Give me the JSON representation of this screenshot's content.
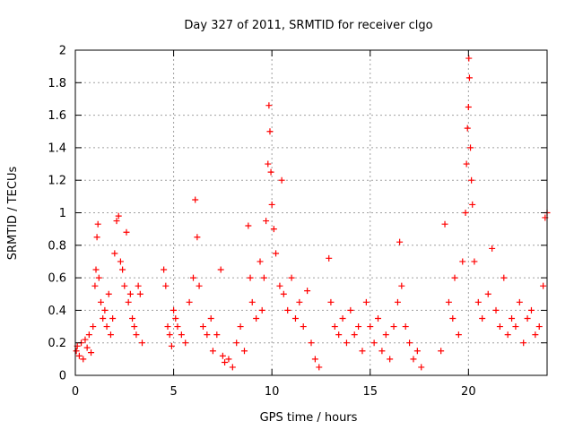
{
  "chart_data": {
    "type": "scatter",
    "title": "Day 327 of 2011, SRMTID for receiver clgo",
    "xlabel": "GPS time / hours",
    "ylabel": "SRMTID / TECUs",
    "xlim": [
      0,
      24
    ],
    "ylim": [
      0,
      2
    ],
    "xticks": [
      0,
      5,
      10,
      15,
      20
    ],
    "xtick_labels": [
      "0",
      "5",
      "10",
      "15",
      "20"
    ],
    "yticks": [
      0,
      0.2,
      0.4,
      0.6,
      0.8,
      1,
      1.2,
      1.4,
      1.6,
      1.8,
      2
    ],
    "ytick_labels": [
      "0",
      "0.2",
      "0.4",
      "0.6",
      "0.8",
      "1",
      "1.2",
      "1.4",
      "1.6",
      "1.8",
      "2"
    ],
    "grid": true,
    "marker": "plus",
    "series": [
      {
        "name": "SRMTID",
        "color": "#ff0000",
        "points": [
          [
            0.05,
            0.15
          ],
          [
            0.1,
            0.18
          ],
          [
            0.2,
            0.12
          ],
          [
            0.3,
            0.2
          ],
          [
            0.4,
            0.1
          ],
          [
            0.5,
            0.22
          ],
          [
            0.6,
            0.17
          ],
          [
            0.7,
            0.25
          ],
          [
            0.8,
            0.14
          ],
          [
            0.9,
            0.3
          ],
          [
            1.0,
            0.55
          ],
          [
            1.05,
            0.65
          ],
          [
            1.1,
            0.85
          ],
          [
            1.15,
            0.93
          ],
          [
            1.2,
            0.6
          ],
          [
            1.3,
            0.45
          ],
          [
            1.4,
            0.35
          ],
          [
            1.5,
            0.4
          ],
          [
            1.6,
            0.3
          ],
          [
            1.7,
            0.5
          ],
          [
            1.8,
            0.25
          ],
          [
            1.9,
            0.35
          ],
          [
            2.0,
            0.75
          ],
          [
            2.1,
            0.95
          ],
          [
            2.2,
            0.98
          ],
          [
            2.3,
            0.7
          ],
          [
            2.4,
            0.65
          ],
          [
            2.5,
            0.55
          ],
          [
            2.6,
            0.88
          ],
          [
            2.7,
            0.45
          ],
          [
            2.8,
            0.5
          ],
          [
            2.9,
            0.35
          ],
          [
            3.0,
            0.3
          ],
          [
            3.1,
            0.25
          ],
          [
            3.2,
            0.55
          ],
          [
            3.3,
            0.5
          ],
          [
            3.4,
            0.2
          ],
          [
            4.5,
            0.65
          ],
          [
            4.6,
            0.55
          ],
          [
            4.7,
            0.3
          ],
          [
            4.8,
            0.25
          ],
          [
            4.9,
            0.18
          ],
          [
            5.0,
            0.4
          ],
          [
            5.1,
            0.35
          ],
          [
            5.2,
            0.3
          ],
          [
            5.4,
            0.25
          ],
          [
            5.6,
            0.2
          ],
          [
            5.8,
            0.45
          ],
          [
            6.0,
            0.6
          ],
          [
            6.1,
            1.08
          ],
          [
            6.2,
            0.85
          ],
          [
            6.3,
            0.55
          ],
          [
            6.5,
            0.3
          ],
          [
            6.7,
            0.25
          ],
          [
            6.9,
            0.35
          ],
          [
            7.0,
            0.15
          ],
          [
            7.2,
            0.25
          ],
          [
            7.4,
            0.65
          ],
          [
            7.5,
            0.12
          ],
          [
            7.6,
            0.08
          ],
          [
            7.8,
            0.1
          ],
          [
            8.0,
            0.05
          ],
          [
            8.2,
            0.2
          ],
          [
            8.4,
            0.3
          ],
          [
            8.6,
            0.15
          ],
          [
            8.8,
            0.92
          ],
          [
            8.9,
            0.6
          ],
          [
            9.0,
            0.45
          ],
          [
            9.2,
            0.35
          ],
          [
            9.4,
            0.7
          ],
          [
            9.5,
            0.4
          ],
          [
            9.6,
            0.6
          ],
          [
            9.7,
            0.95
          ],
          [
            9.8,
            1.3
          ],
          [
            9.85,
            1.66
          ],
          [
            9.9,
            1.5
          ],
          [
            9.95,
            1.25
          ],
          [
            10.0,
            1.05
          ],
          [
            10.1,
            0.9
          ],
          [
            10.2,
            0.75
          ],
          [
            10.4,
            0.55
          ],
          [
            10.5,
            1.2
          ],
          [
            10.6,
            0.5
          ],
          [
            10.8,
            0.4
          ],
          [
            11.0,
            0.6
          ],
          [
            11.2,
            0.35
          ],
          [
            11.4,
            0.45
          ],
          [
            11.6,
            0.3
          ],
          [
            11.8,
            0.52
          ],
          [
            12.0,
            0.2
          ],
          [
            12.2,
            0.1
          ],
          [
            12.4,
            0.05
          ],
          [
            12.9,
            0.72
          ],
          [
            13.0,
            0.45
          ],
          [
            13.2,
            0.3
          ],
          [
            13.4,
            0.25
          ],
          [
            13.6,
            0.35
          ],
          [
            13.8,
            0.2
          ],
          [
            14.0,
            0.4
          ],
          [
            14.2,
            0.25
          ],
          [
            14.4,
            0.3
          ],
          [
            14.6,
            0.15
          ],
          [
            14.8,
            0.45
          ],
          [
            15.0,
            0.3
          ],
          [
            15.2,
            0.2
          ],
          [
            15.4,
            0.35
          ],
          [
            15.6,
            0.15
          ],
          [
            15.8,
            0.25
          ],
          [
            16.0,
            0.1
          ],
          [
            16.2,
            0.3
          ],
          [
            16.4,
            0.45
          ],
          [
            16.5,
            0.82
          ],
          [
            16.6,
            0.55
          ],
          [
            16.8,
            0.3
          ],
          [
            17.0,
            0.2
          ],
          [
            17.2,
            0.1
          ],
          [
            17.4,
            0.15
          ],
          [
            17.6,
            0.05
          ],
          [
            18.6,
            0.15
          ],
          [
            18.8,
            0.93
          ],
          [
            19.0,
            0.45
          ],
          [
            19.2,
            0.35
          ],
          [
            19.3,
            0.6
          ],
          [
            19.5,
            0.25
          ],
          [
            19.7,
            0.7
          ],
          [
            19.85,
            1.0
          ],
          [
            19.9,
            1.3
          ],
          [
            19.95,
            1.52
          ],
          [
            20.0,
            1.65
          ],
          [
            20.02,
            1.95
          ],
          [
            20.05,
            1.83
          ],
          [
            20.1,
            1.4
          ],
          [
            20.15,
            1.2
          ],
          [
            20.2,
            1.05
          ],
          [
            20.3,
            0.7
          ],
          [
            20.5,
            0.45
          ],
          [
            20.7,
            0.35
          ],
          [
            21.0,
            0.5
          ],
          [
            21.2,
            0.78
          ],
          [
            21.4,
            0.4
          ],
          [
            21.6,
            0.3
          ],
          [
            21.8,
            0.6
          ],
          [
            22.0,
            0.25
          ],
          [
            22.2,
            0.35
          ],
          [
            22.4,
            0.3
          ],
          [
            22.6,
            0.45
          ],
          [
            22.8,
            0.2
          ],
          [
            23.0,
            0.35
          ],
          [
            23.2,
            0.4
          ],
          [
            23.4,
            0.25
          ],
          [
            23.6,
            0.3
          ],
          [
            23.8,
            0.55
          ],
          [
            23.9,
            0.97
          ],
          [
            24.0,
            1.0
          ]
        ]
      }
    ]
  }
}
